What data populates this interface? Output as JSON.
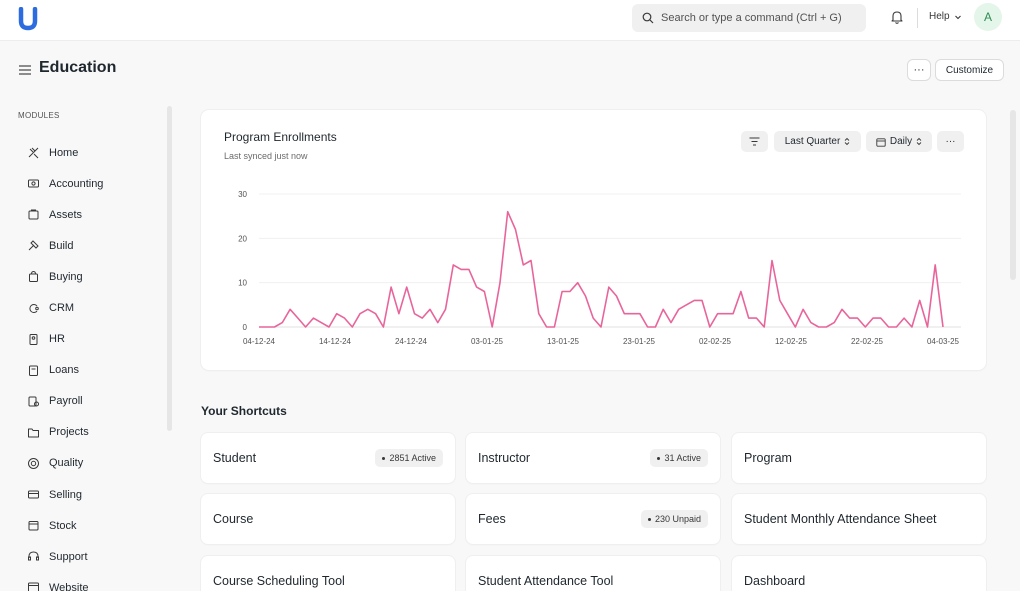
{
  "navbar": {
    "logo_letter": "U",
    "search_placeholder": "Search or type a command (Ctrl + G)",
    "help_label": "Help",
    "avatar_initial": "A",
    "brand_color": "#2d6cdf"
  },
  "page": {
    "title": "Education",
    "more_label": "···",
    "customize_label": "Customize"
  },
  "sidebar": {
    "section_label": "MODULES",
    "items": [
      {
        "label": "Home",
        "icon": "home-icon"
      },
      {
        "label": "Accounting",
        "icon": "accounting-icon"
      },
      {
        "label": "Assets",
        "icon": "assets-icon"
      },
      {
        "label": "Build",
        "icon": "build-icon"
      },
      {
        "label": "Buying",
        "icon": "buying-icon"
      },
      {
        "label": "CRM",
        "icon": "crm-icon"
      },
      {
        "label": "HR",
        "icon": "hr-icon"
      },
      {
        "label": "Loans",
        "icon": "loans-icon"
      },
      {
        "label": "Payroll",
        "icon": "payroll-icon"
      },
      {
        "label": "Projects",
        "icon": "projects-icon"
      },
      {
        "label": "Quality",
        "icon": "quality-icon"
      },
      {
        "label": "Selling",
        "icon": "selling-icon"
      },
      {
        "label": "Stock",
        "icon": "stock-icon"
      },
      {
        "label": "Support",
        "icon": "support-icon"
      },
      {
        "label": "Website",
        "icon": "website-icon"
      }
    ]
  },
  "chart_card": {
    "title": "Program Enrollments",
    "subtitle": "Last synced just now",
    "range_label": "Last Quarter",
    "interval_label": "Daily",
    "more_label": "···"
  },
  "chart_data": {
    "type": "line",
    "title": "Program Enrollments",
    "xlabel": "",
    "ylabel": "",
    "ylim": [
      0,
      30
    ],
    "yticks": [
      0,
      10,
      20,
      30
    ],
    "x_tick_labels": [
      "04-12-24",
      "14-12-24",
      "24-12-24",
      "03-01-25",
      "13-01-25",
      "23-01-25",
      "02-02-25",
      "12-02-25",
      "22-02-25",
      "04-03-25"
    ],
    "line_color": "#e8659c",
    "series": [
      {
        "name": "Program Enrollments",
        "values": [
          0,
          0,
          0,
          1,
          4,
          2,
          0,
          2,
          1,
          0,
          3,
          2,
          0,
          3,
          4,
          3,
          0,
          9,
          3,
          9,
          3,
          2,
          4,
          1,
          4,
          14,
          13,
          13,
          9,
          8,
          0,
          10,
          26,
          22,
          14,
          15,
          3,
          0,
          0,
          8,
          8,
          10,
          7,
          2,
          0,
          9,
          7,
          3,
          3,
          3,
          0,
          0,
          4,
          1,
          4,
          5,
          6,
          6,
          0,
          3,
          3,
          3,
          8,
          2,
          2,
          0,
          15,
          6,
          3,
          0,
          4,
          1,
          0,
          0,
          1,
          4,
          2,
          2,
          0,
          2,
          2,
          0,
          0,
          2,
          0,
          6,
          0,
          14,
          0
        ]
      }
    ]
  },
  "shortcuts": {
    "title": "Your Shortcuts",
    "items": [
      {
        "label": "Student",
        "badge": "2851 Active"
      },
      {
        "label": "Instructor",
        "badge": "31 Active"
      },
      {
        "label": "Program",
        "badge": ""
      },
      {
        "label": "Course",
        "badge": ""
      },
      {
        "label": "Fees",
        "badge": "230 Unpaid"
      },
      {
        "label": "Student Monthly Attendance Sheet",
        "badge": ""
      },
      {
        "label": "Course Scheduling Tool",
        "badge": ""
      },
      {
        "label": "Student Attendance Tool",
        "badge": ""
      },
      {
        "label": "Dashboard",
        "badge": ""
      }
    ]
  }
}
